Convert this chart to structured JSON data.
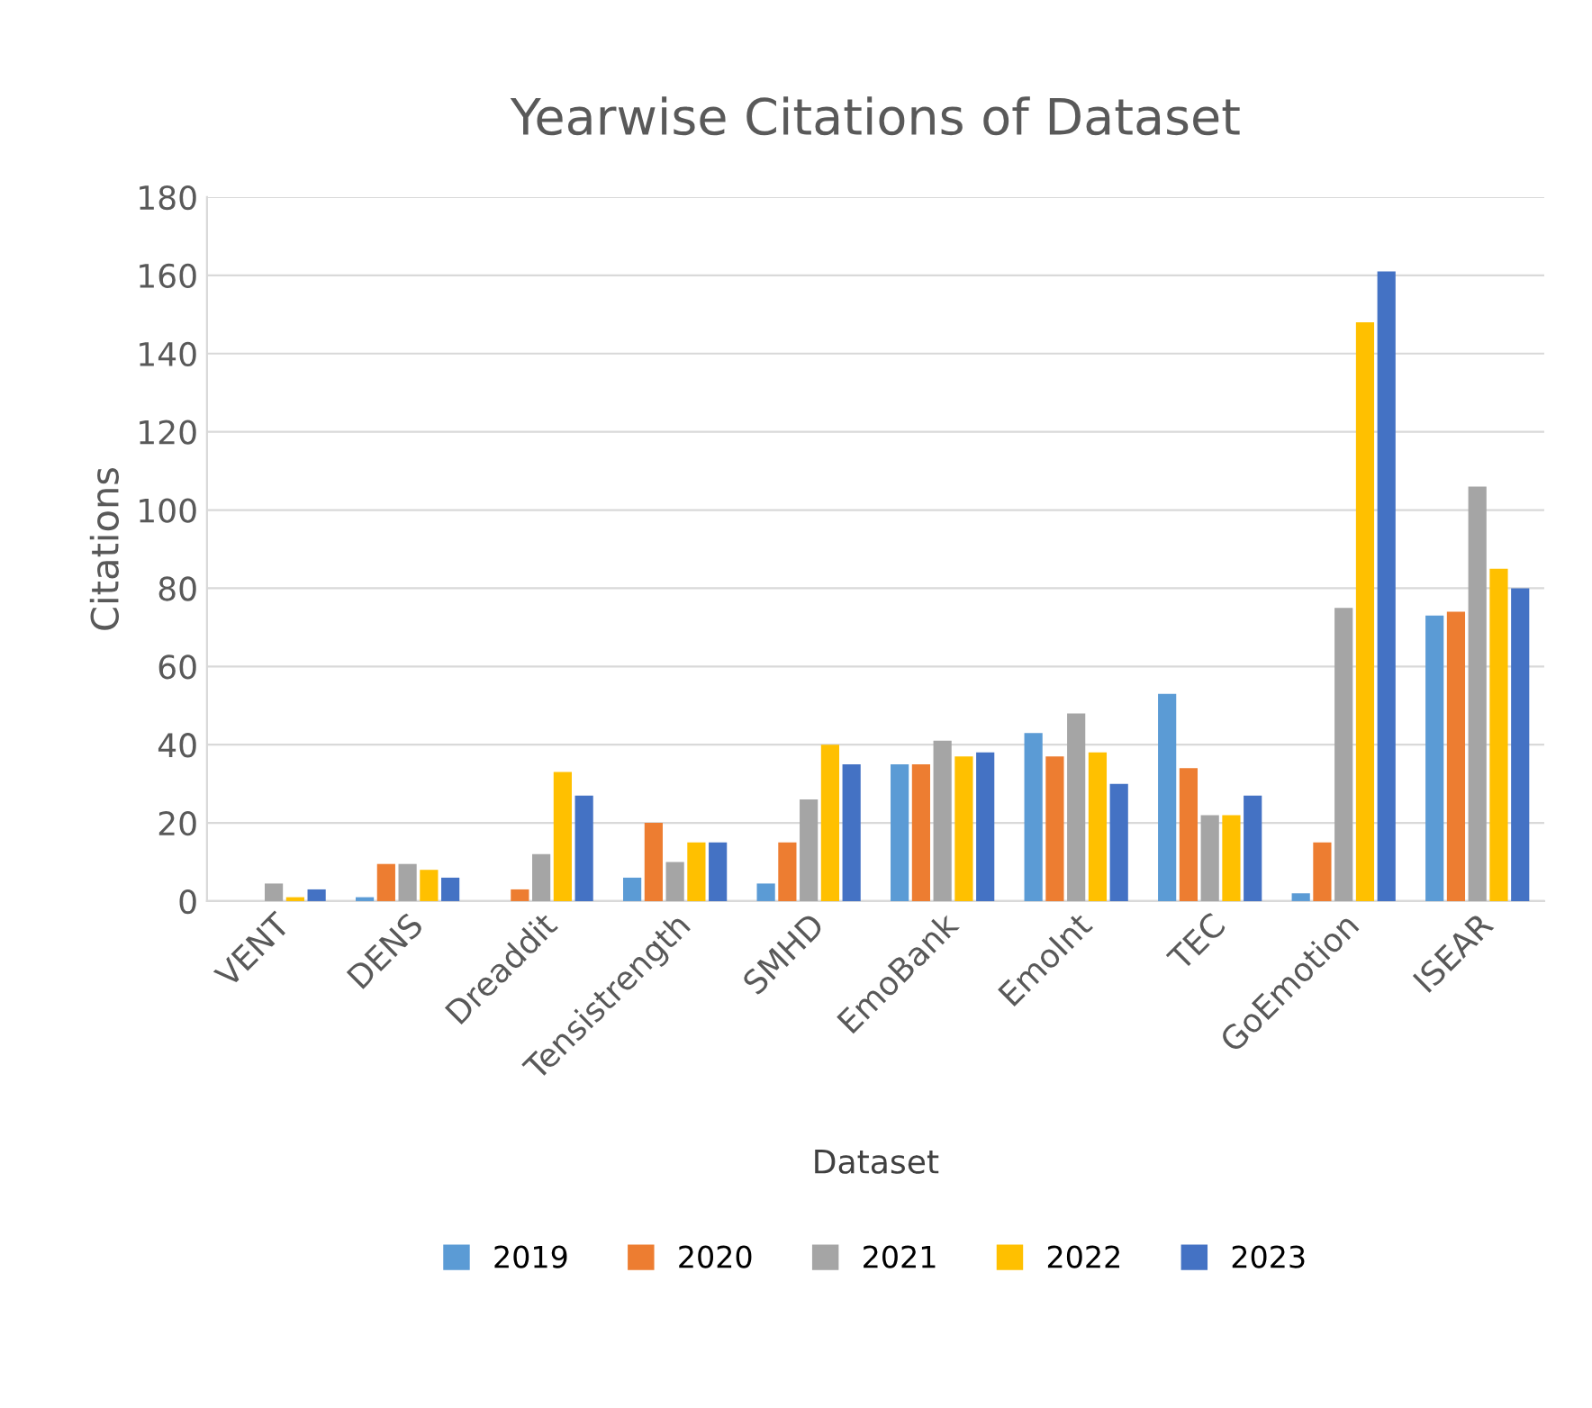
{
  "chart_data": {
    "type": "bar",
    "title": "Yearwise Citations of Dataset",
    "xlabel": "Dataset",
    "ylabel": "Citations",
    "categories": [
      "VENT",
      "DENS",
      "Dreaddit",
      "Tensistrength",
      "SMHD",
      "EmoBank",
      "EmoInt",
      "TEC",
      "GoEmotion",
      "ISEAR"
    ],
    "series": [
      {
        "name": "2019",
        "color": "#5b9bd5",
        "values": [
          0,
          1,
          0,
          6,
          4.5,
          35,
          43,
          53,
          2,
          73
        ]
      },
      {
        "name": "2020",
        "color": "#ed7d31",
        "values": [
          0,
          9.5,
          3,
          20,
          15,
          35,
          37,
          34,
          15,
          74
        ]
      },
      {
        "name": "2021",
        "color": "#a5a5a5",
        "values": [
          4.5,
          9.5,
          12,
          10,
          26,
          41,
          48,
          22,
          75,
          106
        ]
      },
      {
        "name": "2022",
        "color": "#ffc000",
        "values": [
          1,
          8,
          33,
          15,
          40,
          37,
          38,
          22,
          148,
          85
        ]
      },
      {
        "name": "2023",
        "color": "#4472c4",
        "values": [
          3,
          6,
          27,
          15,
          35,
          38,
          30,
          27,
          161,
          80
        ]
      }
    ],
    "ylim": [
      0,
      180
    ],
    "yticks": [
      0,
      20,
      40,
      60,
      80,
      100,
      120,
      140,
      160,
      180
    ],
    "grid": "y",
    "legend": "bottom"
  }
}
